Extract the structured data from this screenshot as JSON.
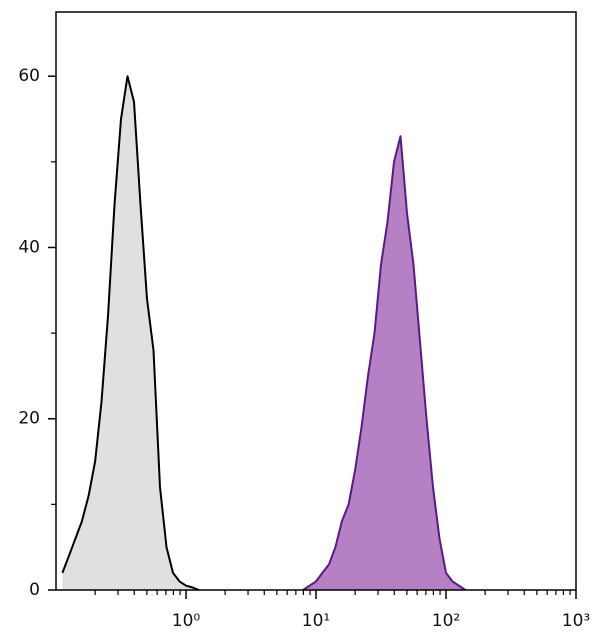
{
  "chart_data": {
    "type": "histogram",
    "xscale": "log",
    "xlim": [
      0.1,
      1000
    ],
    "ylim": [
      0,
      67.5
    ],
    "xticks": [
      {
        "value": 1,
        "label": "10⁰"
      },
      {
        "value": 10,
        "label": "10¹"
      },
      {
        "value": 100,
        "label": "10²"
      },
      {
        "value": 1000,
        "label": "10³"
      }
    ],
    "yticks": [
      0,
      20,
      40,
      60
    ],
    "series": [
      {
        "color": "#000000",
        "fill": "#e0e0e0",
        "x": [
          0.112,
          0.126,
          0.141,
          0.158,
          0.178,
          0.2,
          0.224,
          0.251,
          0.282,
          0.316,
          0.355,
          0.398,
          0.447,
          0.501,
          0.562,
          0.631,
          0.708,
          0.794,
          0.891,
          1,
          1.12,
          1.26
        ],
        "values": [
          2,
          4,
          6,
          8,
          11,
          15,
          22,
          32,
          45,
          55,
          60,
          57,
          45,
          34,
          28,
          12,
          5,
          2,
          1,
          0.5,
          0.3,
          0
        ]
      },
      {
        "color": "#5a1a86",
        "fill": "#b580c4",
        "x": [
          7.94,
          8.91,
          10,
          11.2,
          12.6,
          14.1,
          15.8,
          17.8,
          20,
          22.4,
          25.1,
          28.2,
          31.6,
          35.5,
          39.8,
          44.7,
          50.1,
          56.2,
          63.1,
          70.8,
          79.4,
          89.1,
          100,
          112,
          126,
          141
        ],
        "values": [
          0,
          0.5,
          1,
          2,
          3,
          5,
          8,
          10,
          14,
          19,
          25,
          30,
          38,
          43,
          50,
          53,
          44,
          38,
          29,
          20,
          12,
          6,
          2,
          1,
          0.5,
          0
        ]
      }
    ]
  }
}
